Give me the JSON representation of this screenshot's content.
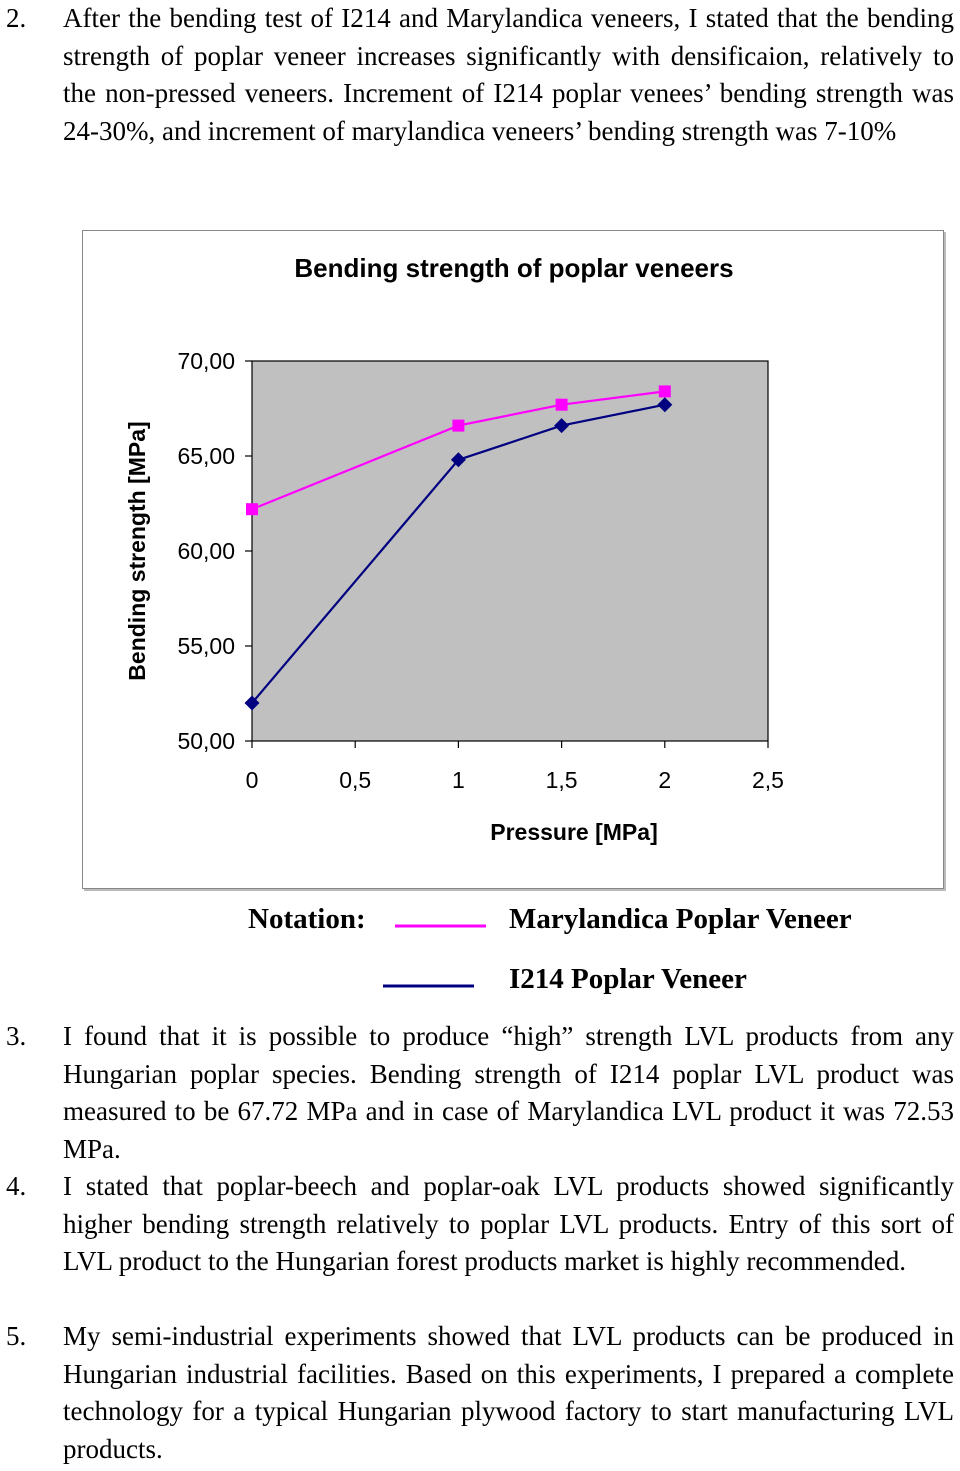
{
  "paragraphs": [
    {
      "number": "2.",
      "text": "After the bending test of I214 and Marylandica veneers, I stated that the bending strength of poplar veneer increases significantly with densificaion, relatively to the non-pressed veneers. Increment of I214 poplar venees’ bending strength was 24-30%, and increment of marylandica veneers’ bending strength was 7-10%"
    },
    {
      "number": "3.",
      "text": "I found that it is possible to produce “high” strength LVL products from any Hungarian poplar species. Bending strength of I214 poplar LVL product was measured to be 67.72 MPa and in case of Marylandica LVL product it was 72.53 MPa."
    },
    {
      "number": "4.",
      "text": "I stated that poplar-beech and poplar-oak LVL products showed significantly higher bending strength relatively to poplar LVL products. Entry of this sort of LVL product to the Hungarian forest products market is highly recommended."
    },
    {
      "number": "5.",
      "text": "My semi-industrial experiments showed that LVL products can be produced in Hungarian industrial facilities. Based on this experiments, I prepared a complete technology for a typical Hungarian plywood factory to start manufacturing LVL products."
    }
  ],
  "chart_data": {
    "type": "line",
    "title": "Bending strength of poplar veneers",
    "xlabel": "Pressure [MPa]",
    "ylabel": "Bending strength [MPa]",
    "xlim": [
      0,
      2.5
    ],
    "ylim": [
      50,
      70
    ],
    "x_ticks": [
      "0",
      "0,5",
      "1",
      "1,5",
      "2",
      "2,5"
    ],
    "y_ticks": [
      "70,00",
      "65,00",
      "60,00",
      "55,00",
      "50,00"
    ],
    "plot_background": "#c0c0c0",
    "legend_position": "below chart",
    "series": [
      {
        "name": "Marylandica Poplar Veneer",
        "color": "#ff00ff",
        "marker": "square",
        "x": [
          0,
          1,
          1.5,
          2
        ],
        "y": [
          62.2,
          66.6,
          67.7,
          68.4
        ]
      },
      {
        "name": "I214 Poplar Veneer",
        "color": "#000080",
        "marker": "diamond",
        "x": [
          0,
          1,
          1.5,
          2
        ],
        "y": [
          52.0,
          64.8,
          66.6,
          67.7
        ]
      }
    ]
  },
  "notation_label": "Notation:"
}
